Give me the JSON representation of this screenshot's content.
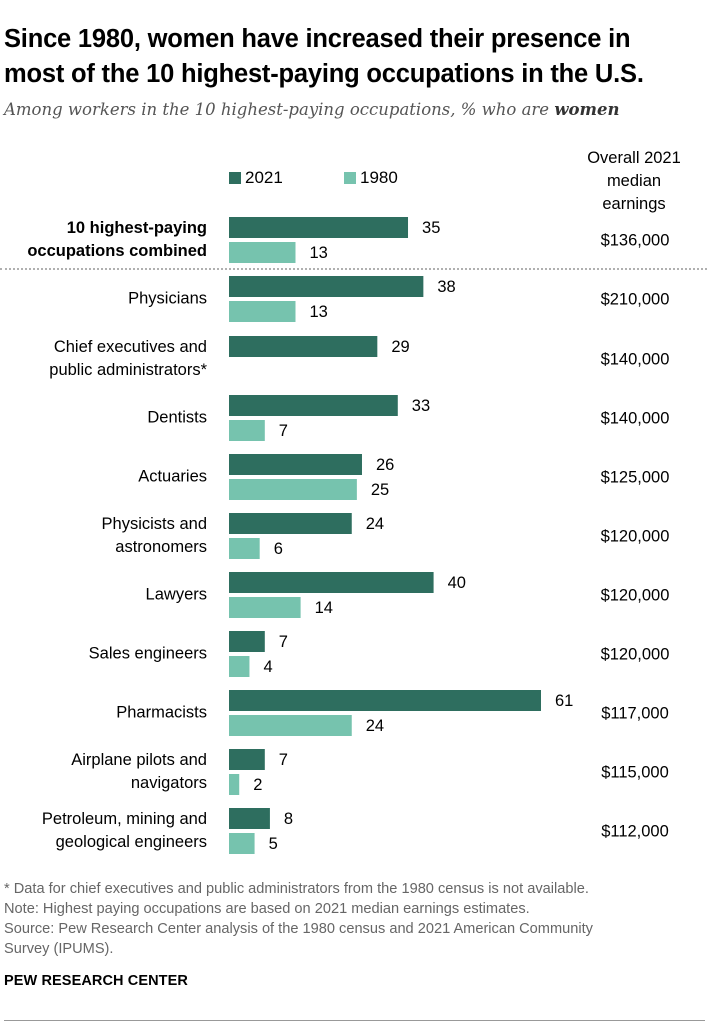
{
  "header": {
    "title_line1": "Since 1980, women have increased their presence in",
    "title_line2": "most of the 10 highest-paying occupations in the U.S.",
    "subtitle_prefix": "Among workers in the 10 highest-paying occupations, % who are ",
    "subtitle_emphasis": "women"
  },
  "legend": {
    "series_2021": "2021",
    "series_1980": "1980"
  },
  "earnings_header": {
    "line1": "Overall 2021",
    "line2": "median",
    "line3": "earnings"
  },
  "colors": {
    "series_2021": "#2e6e5f",
    "series_1980": "#76c3ae"
  },
  "chart_data": {
    "type": "bar",
    "orientation": "horizontal",
    "title": "Since 1980, women have increased their presence in most of the 10 highest-paying occupations in the U.S.",
    "subtitle": "Among workers in the 10 highest-paying occupations, % who are women",
    "xlim": [
      0,
      61
    ],
    "grid": false,
    "legend_position": "top",
    "categories": [
      {
        "label_lines": [
          "10 highest-paying",
          "occupations combined"
        ],
        "bold": true,
        "v2021": 35,
        "v1980": 13,
        "earnings": "$136,000"
      },
      {
        "label_lines": [
          "Physicians"
        ],
        "bold": false,
        "v2021": 38,
        "v1980": 13,
        "earnings": "$210,000"
      },
      {
        "label_lines": [
          "Chief executives and",
          "public administrators*"
        ],
        "bold": false,
        "v2021": 29,
        "v1980": null,
        "earnings": "$140,000"
      },
      {
        "label_lines": [
          "Dentists"
        ],
        "bold": false,
        "v2021": 33,
        "v1980": 7,
        "earnings": "$140,000"
      },
      {
        "label_lines": [
          "Actuaries"
        ],
        "bold": false,
        "v2021": 26,
        "v1980": 25,
        "earnings": "$125,000"
      },
      {
        "label_lines": [
          "Physicists and",
          "astronomers"
        ],
        "bold": false,
        "v2021": 24,
        "v1980": 6,
        "earnings": "$120,000"
      },
      {
        "label_lines": [
          "Lawyers"
        ],
        "bold": false,
        "v2021": 40,
        "v1980": 14,
        "earnings": "$120,000"
      },
      {
        "label_lines": [
          "Sales engineers"
        ],
        "bold": false,
        "v2021": 7,
        "v1980": 4,
        "earnings": "$120,000"
      },
      {
        "label_lines": [
          "Pharmacists"
        ],
        "bold": false,
        "v2021": 61,
        "v1980": 24,
        "earnings": "$117,000"
      },
      {
        "label_lines": [
          "Airplane pilots and",
          "navigators"
        ],
        "bold": false,
        "v2021": 7,
        "v1980": 2,
        "earnings": "$115,000"
      },
      {
        "label_lines": [
          "Petroleum, mining and",
          "geological engineers"
        ],
        "bold": false,
        "v2021": 8,
        "v1980": 5,
        "earnings": "$112,000"
      }
    ]
  },
  "footnotes": {
    "note1": "* Data for chief executives and public administrators from the 1980 census is not available.",
    "note2": "Note: Highest paying occupations are based on 2021 median earnings estimates.",
    "source1": "Source: Pew Research Center analysis of the 1980 census and 2021 American Community",
    "source2": "Survey (IPUMS)."
  },
  "brand": "PEW RESEARCH CENTER"
}
